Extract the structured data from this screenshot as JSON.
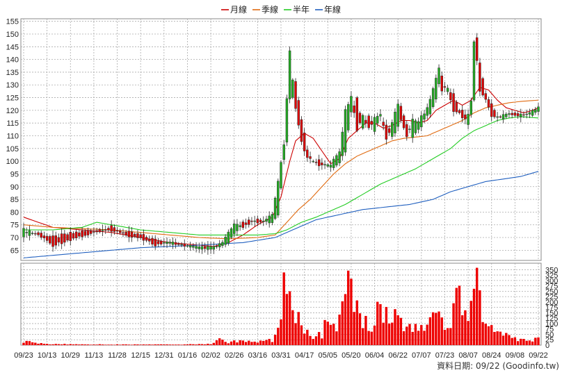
{
  "legend": [
    {
      "label": "月線",
      "color": "#cc0000"
    },
    {
      "label": "季線",
      "color": "#e06a10"
    },
    {
      "label": "半年",
      "color": "#22cc22"
    },
    {
      "label": "年線",
      "color": "#1f5fbf"
    }
  ],
  "footer": {
    "text": "資料日期: 09/22  (Goodinfo.tw)"
  },
  "chart_data": [
    {
      "type": "candlestick",
      "title": "",
      "price_axis": {
        "ylim": [
          61,
          156
        ],
        "ticks": [
          65,
          70,
          75,
          80,
          85,
          90,
          95,
          100,
          105,
          110,
          115,
          120,
          125,
          130,
          135,
          140,
          145,
          150,
          155
        ],
        "side": "left"
      },
      "x_tick_labels": [
        "09/23",
        "10/13",
        "10/29",
        "11/13",
        "11/28",
        "12/15",
        "12/31",
        "01/16",
        "02/02",
        "02/26",
        "03/16",
        "03/31",
        "04/17",
        "05/05",
        "05/20",
        "06/04",
        "06/22",
        "07/07",
        "07/23",
        "08/07",
        "08/24",
        "09/08",
        "09/22"
      ],
      "colors": {
        "up": "#22aa22",
        "down": "#dd0000",
        "flat": "#000000"
      },
      "ohlc_keypoints": [
        [
          0,
          71,
          73
        ],
        [
          5,
          72,
          71
        ],
        [
          10,
          70,
          67
        ],
        [
          18,
          72,
          70
        ],
        [
          25,
          73,
          72
        ],
        [
          30,
          74,
          73
        ],
        [
          35,
          72,
          71
        ],
        [
          40,
          71,
          70
        ],
        [
          45,
          69,
          67
        ],
        [
          50,
          68,
          68
        ],
        [
          55,
          67,
          67
        ],
        [
          60,
          66,
          66
        ],
        [
          65,
          66,
          66
        ],
        [
          68,
          67,
          68
        ],
        [
          70,
          68,
          72
        ],
        [
          72,
          72,
          75
        ],
        [
          75,
          76,
          74
        ],
        [
          78,
          77,
          76
        ],
        [
          82,
          77,
          76
        ],
        [
          85,
          76,
          79
        ],
        [
          87,
          79,
          92
        ],
        [
          89,
          100,
          107
        ],
        [
          90,
          107,
          125
        ],
        [
          91,
          125,
          143
        ],
        [
          92,
          125,
          132
        ],
        [
          93,
          131,
          121
        ],
        [
          95,
          116,
          108
        ],
        [
          97,
          105,
          101
        ],
        [
          99,
          100,
          100
        ],
        [
          102,
          100,
          98
        ],
        [
          105,
          97,
          99
        ],
        [
          108,
          99,
          104
        ],
        [
          110,
          104,
          120
        ],
        [
          112,
          120,
          125
        ],
        [
          114,
          125,
          112
        ],
        [
          116,
          113,
          118
        ],
        [
          118,
          118,
          113
        ],
        [
          120,
          112,
          117
        ],
        [
          122,
          117,
          119
        ],
        [
          124,
          115,
          108
        ],
        [
          126,
          110,
          115
        ],
        [
          128,
          113,
          123
        ],
        [
          129,
          122,
          116
        ],
        [
          131,
          114,
          110
        ],
        [
          133,
          110,
          116
        ],
        [
          135,
          112,
          116
        ],
        [
          137,
          116,
          119
        ],
        [
          139,
          119,
          124
        ],
        [
          141,
          124,
          133
        ],
        [
          142,
          130,
          137
        ],
        [
          143,
          133,
          128
        ],
        [
          145,
          127,
          129
        ],
        [
          147,
          126,
          120
        ],
        [
          149,
          120,
          119
        ],
        [
          151,
          119,
          116
        ],
        [
          152,
          115,
          118
        ],
        [
          153,
          118,
          124
        ],
        [
          154,
          124,
          147
        ],
        [
          155,
          148,
          140
        ],
        [
          156,
          138,
          128
        ],
        [
          158,
          127,
          124
        ],
        [
          160,
          122,
          118
        ],
        [
          162,
          118,
          117
        ],
        [
          164,
          117,
          118
        ],
        [
          166,
          118,
          119
        ],
        [
          168,
          119,
          118
        ],
        [
          170,
          118,
          118
        ],
        [
          172,
          118,
          119
        ],
        [
          174,
          118,
          120
        ],
        [
          176,
          120,
          121
        ]
      ],
      "series_lines": [
        {
          "name": "月線",
          "color": "#cc0000",
          "points": [
            [
              0,
              78
            ],
            [
              10,
              74
            ],
            [
              20,
              73
            ],
            [
              30,
              72
            ],
            [
              40,
              70
            ],
            [
              50,
              68
            ],
            [
              60,
              67
            ],
            [
              65,
              66.5
            ],
            [
              70,
              68
            ],
            [
              75,
              71
            ],
            [
              80,
              75
            ],
            [
              85,
              78
            ],
            [
              88,
              86
            ],
            [
              91,
              100
            ],
            [
              93,
              108
            ],
            [
              96,
              111
            ],
            [
              99,
              109
            ],
            [
              102,
              104
            ],
            [
              105,
              99
            ],
            [
              108,
              101
            ],
            [
              111,
              109
            ],
            [
              114,
              112
            ],
            [
              117,
              115
            ],
            [
              120,
              115
            ],
            [
              123,
              113
            ],
            [
              126,
              114
            ],
            [
              129,
              116
            ],
            [
              132,
              116
            ],
            [
              135,
              115
            ],
            [
              138,
              116
            ],
            [
              141,
              120
            ],
            [
              144,
              122
            ],
            [
              147,
              124
            ],
            [
              150,
              122
            ],
            [
              153,
              124
            ],
            [
              156,
              129
            ],
            [
              159,
              128
            ],
            [
              162,
              124
            ],
            [
              165,
              121
            ],
            [
              168,
              120
            ],
            [
              171,
              119
            ],
            [
              174,
              120
            ],
            [
              176,
              121
            ]
          ]
        },
        {
          "name": "季線",
          "color": "#e06a10",
          "points": [
            [
              0,
              75
            ],
            [
              10,
              74
            ],
            [
              20,
              73.5
            ],
            [
              30,
              73
            ],
            [
              40,
              72
            ],
            [
              50,
              71
            ],
            [
              60,
              70
            ],
            [
              70,
              69.5
            ],
            [
              80,
              70
            ],
            [
              86,
              71
            ],
            [
              90,
              76
            ],
            [
              94,
              81
            ],
            [
              98,
              85
            ],
            [
              102,
              90
            ],
            [
              106,
              95
            ],
            [
              110,
              99
            ],
            [
              114,
              102
            ],
            [
              118,
              104
            ],
            [
              122,
              106
            ],
            [
              126,
              108
            ],
            [
              130,
              109
            ],
            [
              134,
              109.5
            ],
            [
              138,
              110
            ],
            [
              142,
              112
            ],
            [
              146,
              114
            ],
            [
              150,
              116
            ],
            [
              154,
              119
            ],
            [
              158,
              121
            ],
            [
              162,
              122
            ],
            [
              166,
              123
            ],
            [
              170,
              123.5
            ],
            [
              176,
              124
            ]
          ]
        },
        {
          "name": "半年",
          "color": "#22cc22",
          "points": [
            [
              0,
              73
            ],
            [
              10,
              73
            ],
            [
              20,
              74
            ],
            [
              25,
              76
            ],
            [
              30,
              75
            ],
            [
              40,
              73
            ],
            [
              50,
              72
            ],
            [
              60,
              71
            ],
            [
              70,
              71
            ],
            [
              80,
              71
            ],
            [
              86,
              71.5
            ],
            [
              90,
              73
            ],
            [
              95,
              76
            ],
            [
              100,
              78
            ],
            [
              106,
              81
            ],
            [
              110,
              83
            ],
            [
              116,
              87
            ],
            [
              122,
              91
            ],
            [
              128,
              94
            ],
            [
              134,
              97
            ],
            [
              140,
              101
            ],
            [
              146,
              105
            ],
            [
              150,
              109
            ],
            [
              154,
              112
            ],
            [
              158,
              114
            ],
            [
              162,
              116
            ],
            [
              166,
              117
            ],
            [
              170,
              117.5
            ],
            [
              176,
              117
            ]
          ]
        },
        {
          "name": "年線",
          "color": "#1f5fbf",
          "points": [
            [
              0,
              62
            ],
            [
              20,
              64
            ],
            [
              40,
              66
            ],
            [
              60,
              67
            ],
            [
              75,
              68
            ],
            [
              86,
              70
            ],
            [
              92,
              73
            ],
            [
              100,
              77
            ],
            [
              108,
              79
            ],
            [
              116,
              81
            ],
            [
              124,
              82
            ],
            [
              132,
              83
            ],
            [
              140,
              85
            ],
            [
              146,
              88
            ],
            [
              152,
              90
            ],
            [
              158,
              92
            ],
            [
              164,
              93
            ],
            [
              170,
              94
            ],
            [
              176,
              96
            ]
          ]
        }
      ],
      "volume": {
        "axis_side": "right",
        "ylim": [
          0,
          380
        ],
        "ticks": [
          0,
          25,
          50,
          75,
          100,
          125,
          150,
          175,
          200,
          225,
          250,
          275,
          300,
          325,
          350
        ],
        "color": "#ee0000",
        "keypoints": [
          [
            0,
            20
          ],
          [
            5,
            8
          ],
          [
            10,
            5
          ],
          [
            20,
            4
          ],
          [
            30,
            3
          ],
          [
            40,
            3
          ],
          [
            50,
            3
          ],
          [
            60,
            4
          ],
          [
            65,
            8
          ],
          [
            67,
            50
          ],
          [
            68,
            20
          ],
          [
            70,
            15
          ],
          [
            75,
            20
          ],
          [
            80,
            15
          ],
          [
            85,
            25
          ],
          [
            87,
            60
          ],
          [
            88,
            150
          ],
          [
            89,
            340
          ],
          [
            90,
            320
          ],
          [
            91,
            350
          ],
          [
            92,
            250
          ],
          [
            93,
            160
          ],
          [
            95,
            120
          ],
          [
            97,
            60
          ],
          [
            99,
            45
          ],
          [
            102,
            55
          ],
          [
            104,
            120
          ],
          [
            106,
            90
          ],
          [
            108,
            110
          ],
          [
            110,
            230
          ],
          [
            111,
            325
          ],
          [
            112,
            250
          ],
          [
            114,
            160
          ],
          [
            116,
            130
          ],
          [
            118,
            115
          ],
          [
            120,
            110
          ],
          [
            122,
            210
          ],
          [
            124,
            150
          ],
          [
            126,
            130
          ],
          [
            128,
            165
          ],
          [
            130,
            110
          ],
          [
            132,
            80
          ],
          [
            135,
            75
          ],
          [
            138,
            85
          ],
          [
            140,
            200
          ],
          [
            142,
            150
          ],
          [
            144,
            90
          ],
          [
            146,
            75
          ],
          [
            148,
            260
          ],
          [
            150,
            160
          ],
          [
            152,
            100
          ],
          [
            153,
            270
          ],
          [
            154,
            325
          ],
          [
            155,
            300
          ],
          [
            156,
            245
          ],
          [
            158,
            130
          ],
          [
            160,
            90
          ],
          [
            162,
            55
          ],
          [
            164,
            50
          ],
          [
            166,
            35
          ],
          [
            168,
            30
          ],
          [
            170,
            25
          ],
          [
            172,
            30
          ],
          [
            174,
            20
          ],
          [
            176,
            45
          ]
        ]
      },
      "n_bars": 177
    }
  ]
}
